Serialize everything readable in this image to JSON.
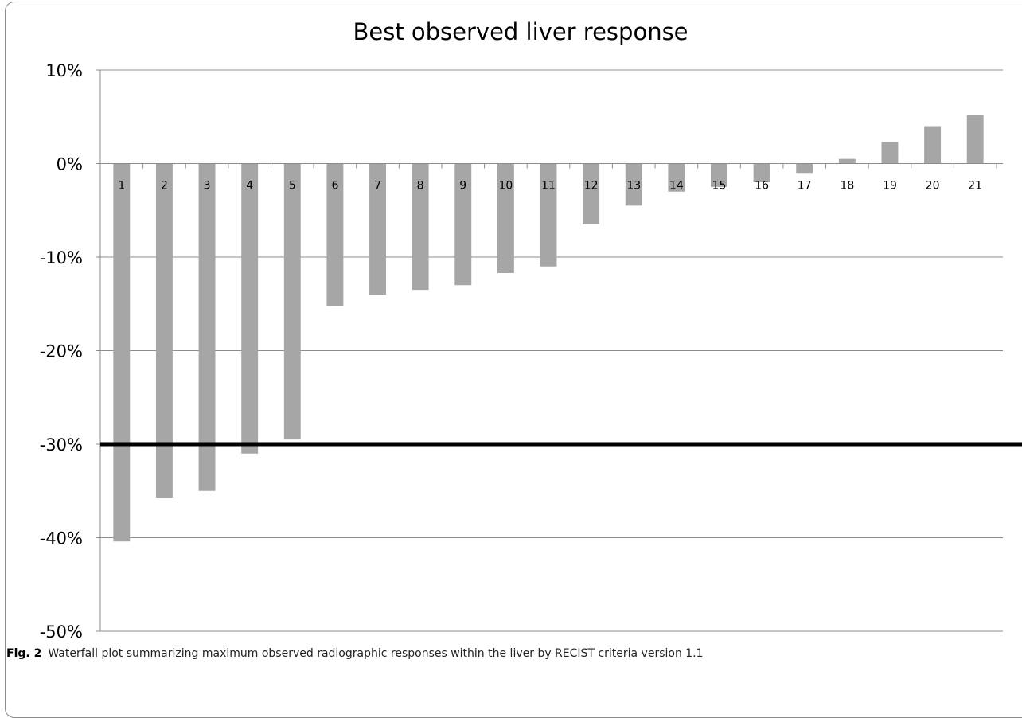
{
  "caption": {
    "label": "Fig. 2",
    "text": "Waterfall plot summarizing maximum observed radiographic responses within the liver by RECIST criteria version 1.1"
  },
  "chart_data": {
    "type": "bar",
    "title": "Best observed liver response",
    "xlabel": "",
    "ylabel": "",
    "categories": [
      "1",
      "2",
      "3",
      "4",
      "5",
      "6",
      "7",
      "8",
      "9",
      "10",
      "11",
      "12",
      "13",
      "14",
      "15",
      "16",
      "17",
      "18",
      "19",
      "20",
      "21"
    ],
    "values": [
      -40.4,
      -35.7,
      -35.0,
      -31.0,
      -29.5,
      -15.2,
      -14.0,
      -13.5,
      -13.0,
      -11.7,
      -11.0,
      -6.5,
      -4.5,
      -3.0,
      -2.5,
      -2.0,
      -1.0,
      0.5,
      2.3,
      4.0,
      5.2
    ],
    "ylim": [
      -50,
      10
    ],
    "yticks": [
      10,
      0,
      -10,
      -20,
      -30,
      -40,
      -50
    ],
    "ytick_labels": [
      "10%",
      "0%",
      "-10%",
      "-20%",
      "-30%",
      "-40%",
      "-50%"
    ],
    "reference_line": -30,
    "bar_color": "#a6a6a6",
    "grid": true,
    "legend": "none"
  }
}
